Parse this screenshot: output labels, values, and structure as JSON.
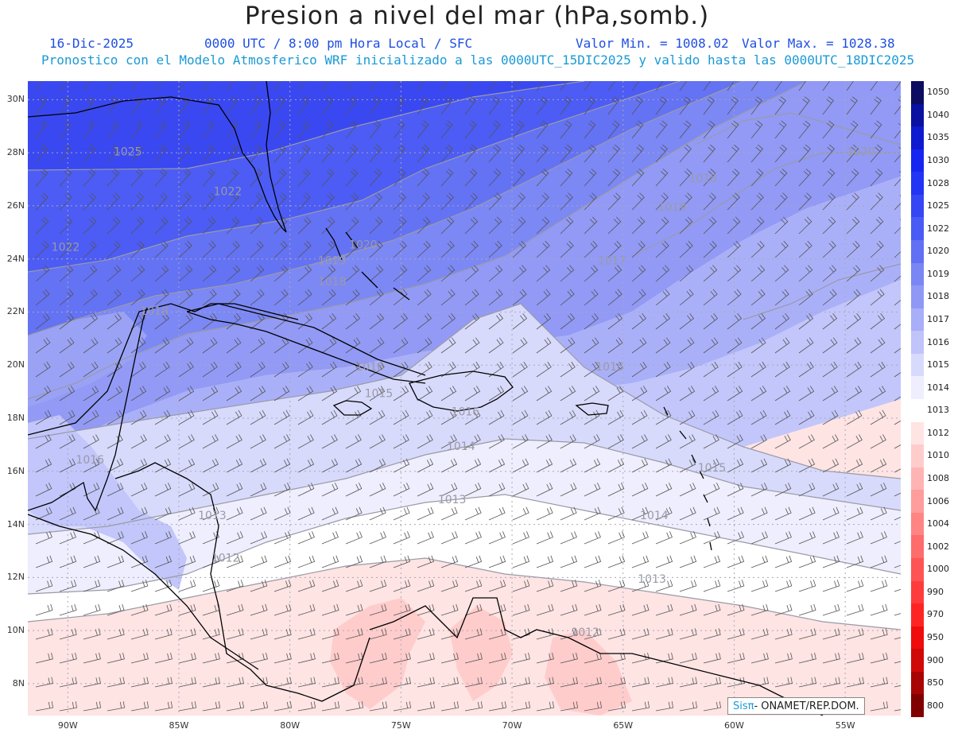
{
  "header": {
    "title": "Presion a nivel del mar (hPa,somb.)",
    "date": "16-Dic-2025",
    "time_info": "0000 UTC / 8:00 pm Hora Local / SFC",
    "min_label": "Valor Min. = 1008.02",
    "max_label": "Valor Max. = 1028.38",
    "model_info": "Pronostico con el Modelo Atmosferico WRF inicializado a las 0000UTC_15DIC2025 y valido hasta las  0000UTC_18DIC2025"
  },
  "axes": {
    "lon_labels": [
      "90W",
      "85W",
      "80W",
      "75W",
      "70W",
      "65W",
      "60W",
      "55W"
    ],
    "lat_labels": [
      "30N",
      "28N",
      "26N",
      "24N",
      "22N",
      "20N",
      "18N",
      "16N",
      "14N",
      "12N",
      "10N",
      "8N"
    ],
    "lon_range": [
      -91.8,
      -52.5
    ],
    "lat_range": [
      6.8,
      30.7
    ]
  },
  "colorbar": {
    "levels": [
      "1050",
      "1040",
      "1035",
      "1030",
      "1028",
      "1025",
      "1022",
      "1020",
      "1019",
      "1018",
      "1017",
      "1016",
      "1015",
      "1014",
      "1013",
      "1012",
      "1010",
      "1008",
      "1006",
      "1004",
      "1002",
      "1000",
      "990",
      "970",
      "950",
      "900",
      "850",
      "800"
    ],
    "colors": [
      "#0c0c60",
      "#0a10a0",
      "#0e1ad0",
      "#1626f0",
      "#2234f4",
      "#3546f4",
      "#4a5af4",
      "#6270f4",
      "#7a86f4",
      "#9098f6",
      "#a8aef8",
      "#c0c4fa",
      "#d8dafc",
      "#eeeefe",
      "#ffffff",
      "#ffe4e4",
      "#ffcccc",
      "#ffb4b4",
      "#ff9c9c",
      "#ff8484",
      "#ff6c6c",
      "#ff5454",
      "#ff3c3c",
      "#ff2424",
      "#f00c0c",
      "#d00808",
      "#a80404",
      "#800000"
    ]
  },
  "isobar_labels": [
    {
      "text": "1025",
      "lon": -87.3,
      "lat": 27.9
    },
    {
      "text": "1022",
      "lon": -82.8,
      "lat": 26.4
    },
    {
      "text": "1022",
      "lon": -90.1,
      "lat": 24.3
    },
    {
      "text": "1020",
      "lon": -76.7,
      "lat": 24.4
    },
    {
      "text": "1019",
      "lon": -78.1,
      "lat": 23.8
    },
    {
      "text": "1018",
      "lon": -78.1,
      "lat": 23.0
    },
    {
      "text": "1018",
      "lon": -86.1,
      "lat": 21.9
    },
    {
      "text": "1017",
      "lon": -65.5,
      "lat": 23.8
    },
    {
      "text": "1018",
      "lon": -61.4,
      "lat": 26.9
    },
    {
      "text": "1019",
      "lon": -62.8,
      "lat": 25.8
    },
    {
      "text": "1020",
      "lon": -54.3,
      "lat": 27.9
    },
    {
      "text": "1016",
      "lon": -76.4,
      "lat": 19.8
    },
    {
      "text": "1015",
      "lon": -76.0,
      "lat": 18.8
    },
    {
      "text": "1016",
      "lon": -72.1,
      "lat": 18.1
    },
    {
      "text": "1016",
      "lon": -65.6,
      "lat": 19.8
    },
    {
      "text": "1014",
      "lon": -72.3,
      "lat": 16.8
    },
    {
      "text": "1016",
      "lon": -89.0,
      "lat": 16.3
    },
    {
      "text": "1015",
      "lon": -61.0,
      "lat": 16.0
    },
    {
      "text": "1013",
      "lon": -83.5,
      "lat": 14.2
    },
    {
      "text": "1013",
      "lon": -72.7,
      "lat": 14.8
    },
    {
      "text": "1014",
      "lon": -63.6,
      "lat": 14.2
    },
    {
      "text": "1012",
      "lon": -82.9,
      "lat": 12.6
    },
    {
      "text": "1013",
      "lon": -63.7,
      "lat": 11.8
    },
    {
      "text": "1012",
      "lon": -66.7,
      "lat": 9.8
    }
  ],
  "logo": {
    "brand": "Sisπ",
    "org": " - ONAMET/REP.DOM."
  }
}
